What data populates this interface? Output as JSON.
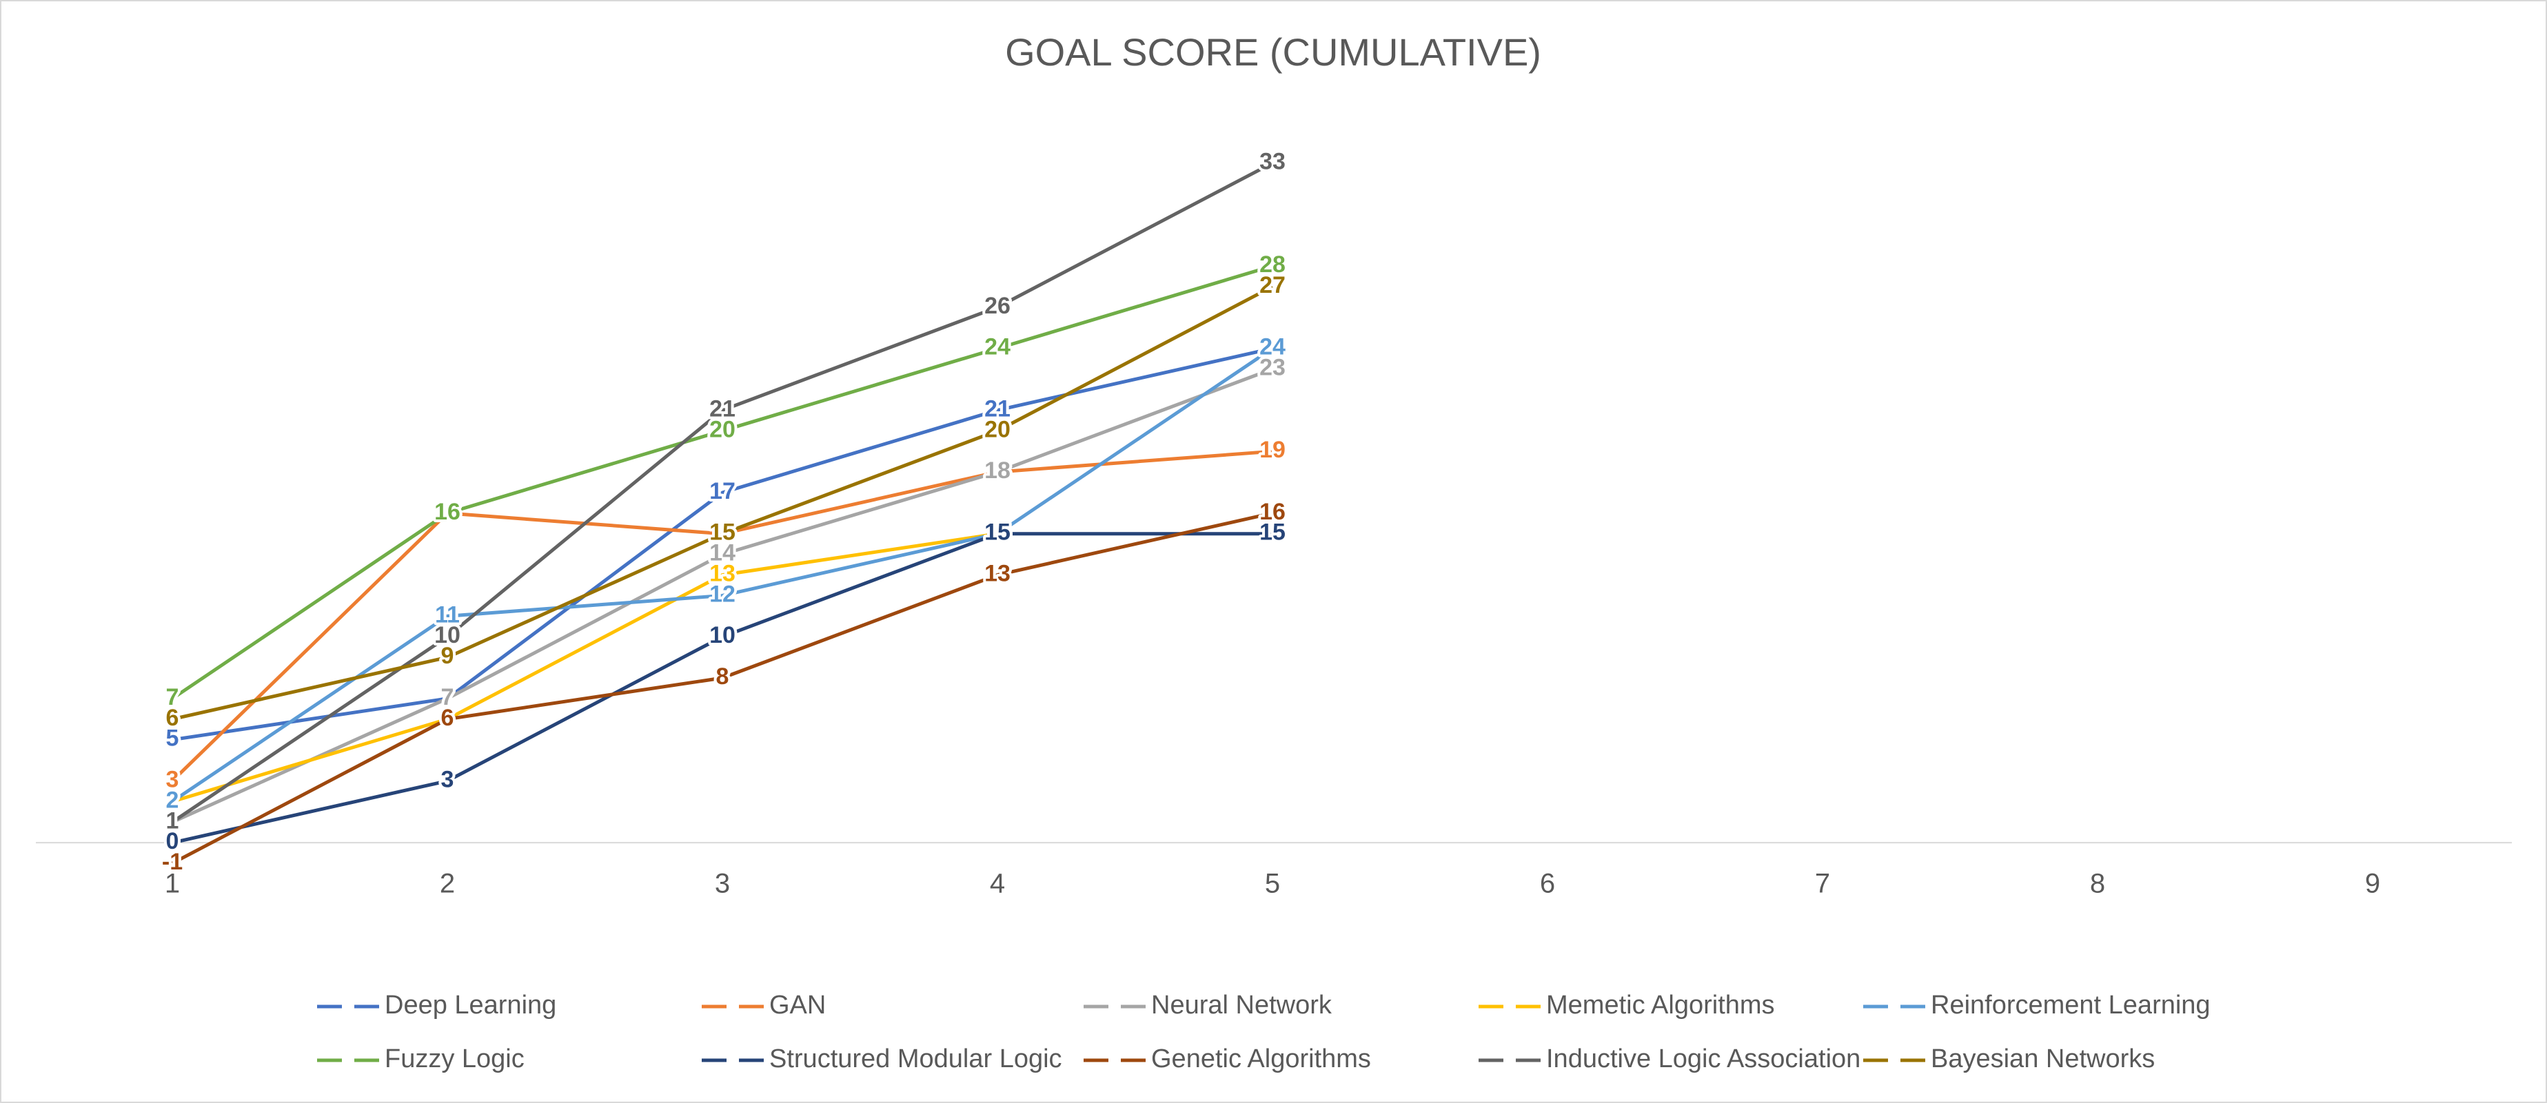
{
  "chart_data": {
    "type": "line",
    "title": "GOAL SCORE (CUMULATIVE)",
    "categories": [
      "1",
      "2",
      "3",
      "4",
      "5",
      "6",
      "7",
      "8",
      "9"
    ],
    "ylim": [
      -1.5,
      36
    ],
    "series": [
      {
        "name": "Deep Learning",
        "color": "#4472c4",
        "values": [
          5,
          7,
          17,
          21,
          24,
          null,
          null,
          null,
          null
        ]
      },
      {
        "name": "GAN",
        "color": "#ed7d31",
        "values": [
          3,
          16,
          15,
          18,
          19,
          null,
          null,
          null,
          null
        ]
      },
      {
        "name": "Neural Network",
        "color": "#a5a5a5",
        "values": [
          1,
          7,
          14,
          18,
          23,
          null,
          null,
          null,
          null
        ]
      },
      {
        "name": "Memetic Algorithms",
        "color": "#ffc000",
        "values": [
          2,
          6,
          13,
          15,
          null,
          null,
          null,
          null,
          null
        ]
      },
      {
        "name": "Reinforcement Learning",
        "color": "#5b9bd5",
        "values": [
          2,
          11,
          12,
          15,
          24,
          null,
          null,
          null,
          null
        ]
      },
      {
        "name": "Fuzzy Logic",
        "color": "#70ad47",
        "values": [
          7,
          16,
          20,
          24,
          28,
          null,
          null,
          null,
          null
        ]
      },
      {
        "name": "Structured Modular Logic",
        "color": "#264478",
        "values": [
          0,
          3,
          10,
          15,
          15,
          null,
          null,
          null,
          null
        ]
      },
      {
        "name": "Genetic Algorithms",
        "color": "#9e480e",
        "values": [
          -1,
          6,
          8,
          13,
          16,
          null,
          null,
          null,
          null
        ]
      },
      {
        "name": "Inductive Logic Association",
        "color": "#636363",
        "values": [
          1,
          10,
          21,
          26,
          33,
          null,
          null,
          null,
          null
        ]
      },
      {
        "name": "Bayesian Networks",
        "color": "#997300",
        "values": [
          6,
          9,
          15,
          20,
          27,
          null,
          null,
          null,
          null
        ]
      }
    ]
  }
}
